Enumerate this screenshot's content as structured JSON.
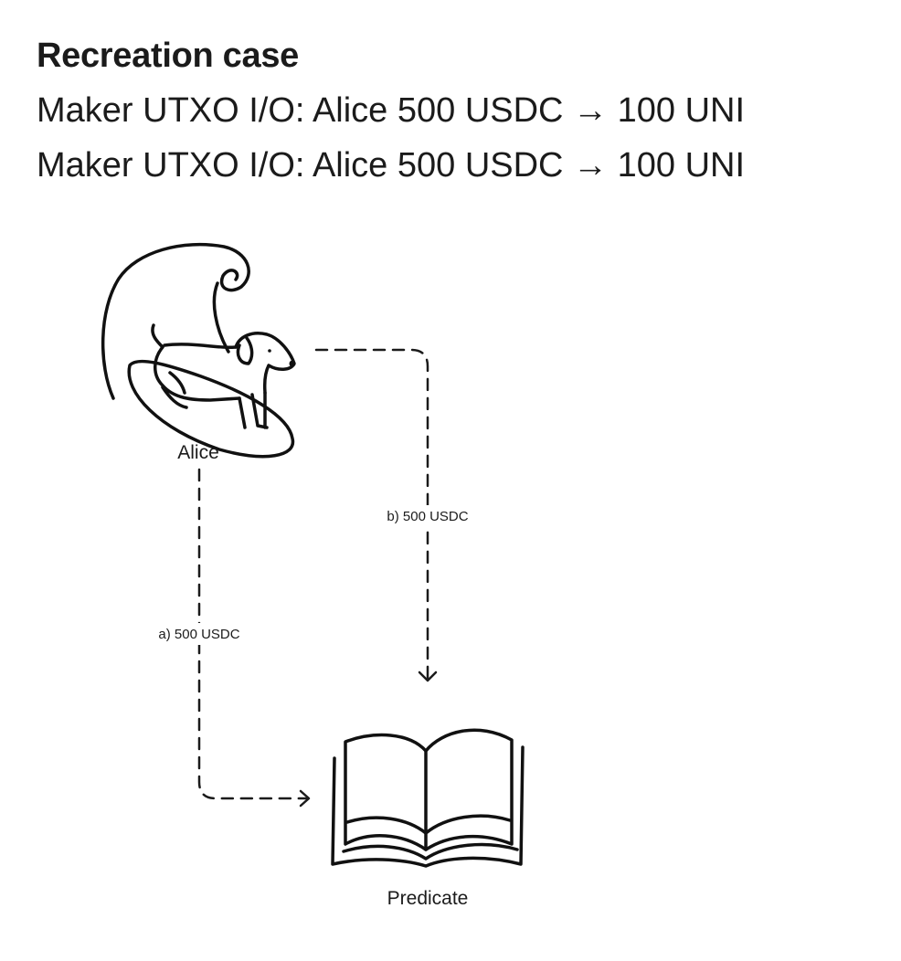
{
  "header": {
    "title": "Recreation case",
    "lines": [
      "Maker UTXO I/O: Alice 500 USDC → 100 UNI",
      "Maker UTXO I/O: Alice 500 USDC → 100 UNI"
    ]
  },
  "diagram": {
    "nodes": [
      {
        "id": "alice",
        "label": "Alice",
        "icon": "dog-on-surfboard-icon"
      },
      {
        "id": "predicate",
        "label": "Predicate",
        "icon": "open-book-icon"
      }
    ],
    "edges": [
      {
        "id": "a",
        "from": "alice",
        "to": "predicate",
        "label": "a) 500 USDC",
        "style": "dashed"
      },
      {
        "id": "b",
        "from": "alice",
        "to": "predicate",
        "label": "b) 500 USDC",
        "style": "dashed"
      }
    ]
  }
}
